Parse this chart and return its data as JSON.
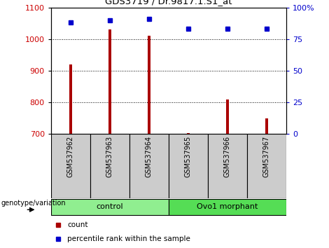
{
  "title": "GDS3719 / Dr.9817.1.S1_at",
  "samples": [
    "GSM537962",
    "GSM537963",
    "GSM537964",
    "GSM537965",
    "GSM537966",
    "GSM537967"
  ],
  "counts": [
    920,
    1030,
    1010,
    703,
    808,
    750
  ],
  "percentiles": [
    88,
    90,
    91,
    83,
    83,
    83
  ],
  "ylim_left": [
    700,
    1100
  ],
  "ylim_right": [
    0,
    100
  ],
  "yticks_left": [
    700,
    800,
    900,
    1000,
    1100
  ],
  "yticks_right": [
    0,
    25,
    50,
    75,
    100
  ],
  "ytick_labels_right": [
    "0",
    "25",
    "50",
    "75",
    "100%"
  ],
  "bar_color": "#aa0000",
  "dot_color": "#0000cc",
  "grid_color": "black",
  "groups": [
    {
      "label": "control",
      "color": "#90ee90"
    },
    {
      "label": "Ovo1 morphant",
      "color": "#55dd55"
    }
  ],
  "legend_items": [
    {
      "label": "count",
      "color": "#aa0000"
    },
    {
      "label": "percentile rank within the sample",
      "color": "#0000cc"
    }
  ],
  "genotype_label": "genotype/variation",
  "tick_label_color_left": "#cc0000",
  "tick_label_color_right": "#0000cc",
  "bar_width": 0.08
}
